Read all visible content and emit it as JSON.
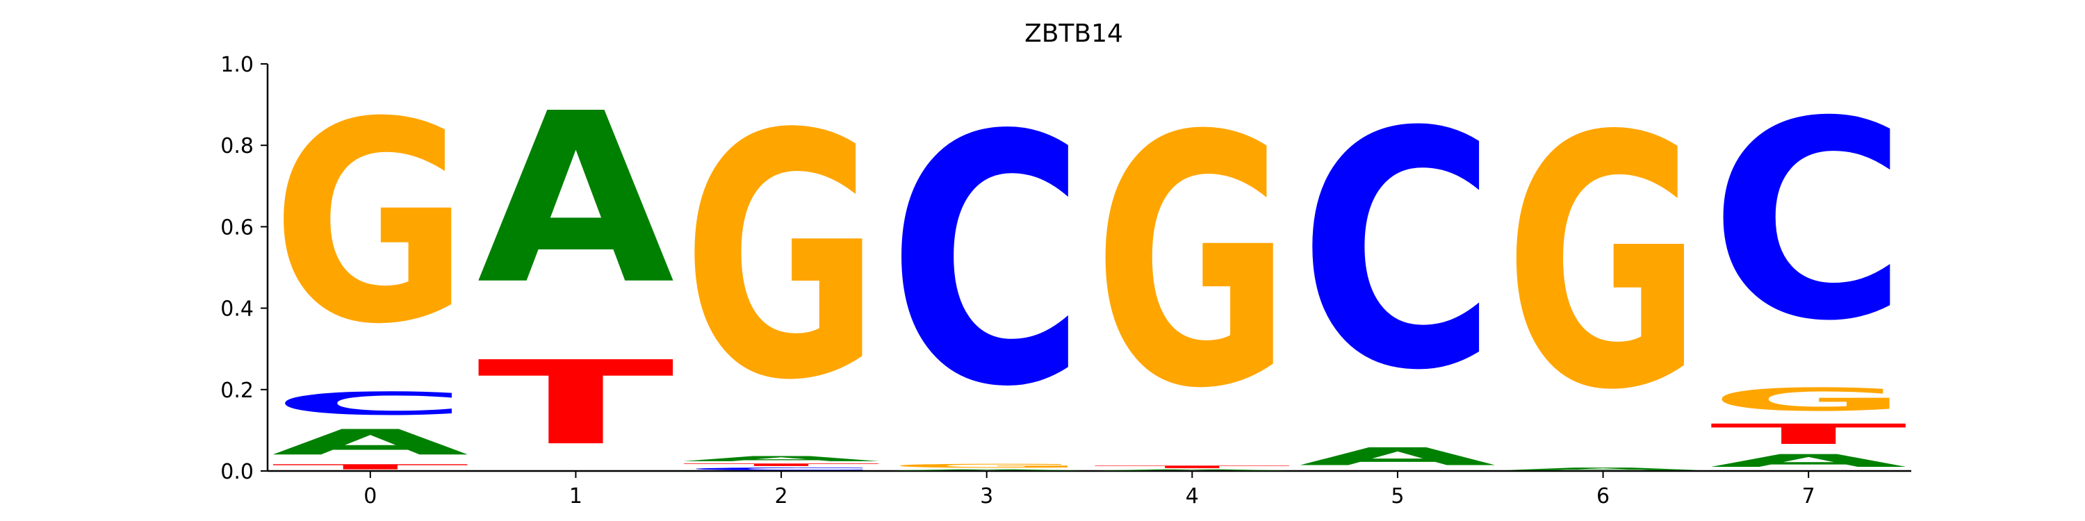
{
  "colors": {
    "A": "#008000",
    "C": "#0000ff",
    "G": "#ffa500",
    "T": "#ff0000",
    "axis": "#000000"
  },
  "chart_data": {
    "type": "sequence-logo",
    "title": "ZBTB14",
    "xlabel": "",
    "ylabel": "",
    "ylim": [
      0,
      1.0
    ],
    "yticks": [
      "0.0",
      "0.2",
      "0.4",
      "0.6",
      "0.8",
      "1.0"
    ],
    "xticks": [
      "0",
      "1",
      "2",
      "3",
      "4",
      "5",
      "6",
      "7"
    ],
    "grid": false,
    "positions": [
      {
        "pos": "0",
        "letters": [
          {
            "base": "T",
            "value": 0.02
          },
          {
            "base": "A",
            "value": 0.1
          },
          {
            "base": "C",
            "value": 0.09
          },
          {
            "base": "G",
            "value": 0.79
          }
        ]
      },
      {
        "pos": "1",
        "letters": [
          {
            "base": "T",
            "value": 0.33
          },
          {
            "base": "A",
            "value": 0.67
          }
        ]
      },
      {
        "pos": "2",
        "letters": [
          {
            "base": "C",
            "value": 0.01
          },
          {
            "base": "T",
            "value": 0.01
          },
          {
            "base": "A",
            "value": 0.02
          },
          {
            "base": "G",
            "value": 0.96
          }
        ]
      },
      {
        "pos": "3",
        "letters": [
          {
            "base": "A",
            "value": 0.005
          },
          {
            "base": "G",
            "value": 0.015
          },
          {
            "base": "C",
            "value": 0.98
          }
        ]
      },
      {
        "pos": "4",
        "letters": [
          {
            "base": "A",
            "value": 0.005
          },
          {
            "base": "T",
            "value": 0.01
          },
          {
            "base": "G",
            "value": 0.985
          }
        ]
      },
      {
        "pos": "5",
        "letters": [
          {
            "base": "A",
            "value": 0.07
          },
          {
            "base": "C",
            "value": 0.93
          }
        ]
      },
      {
        "pos": "6",
        "letters": [
          {
            "base": "A",
            "value": 0.01
          },
          {
            "base": "G",
            "value": 0.99
          }
        ]
      },
      {
        "pos": "7",
        "letters": [
          {
            "base": "A",
            "value": 0.05
          },
          {
            "base": "T",
            "value": 0.08
          },
          {
            "base": "G",
            "value": 0.09
          },
          {
            "base": "C",
            "value": 0.78
          }
        ]
      }
    ]
  }
}
